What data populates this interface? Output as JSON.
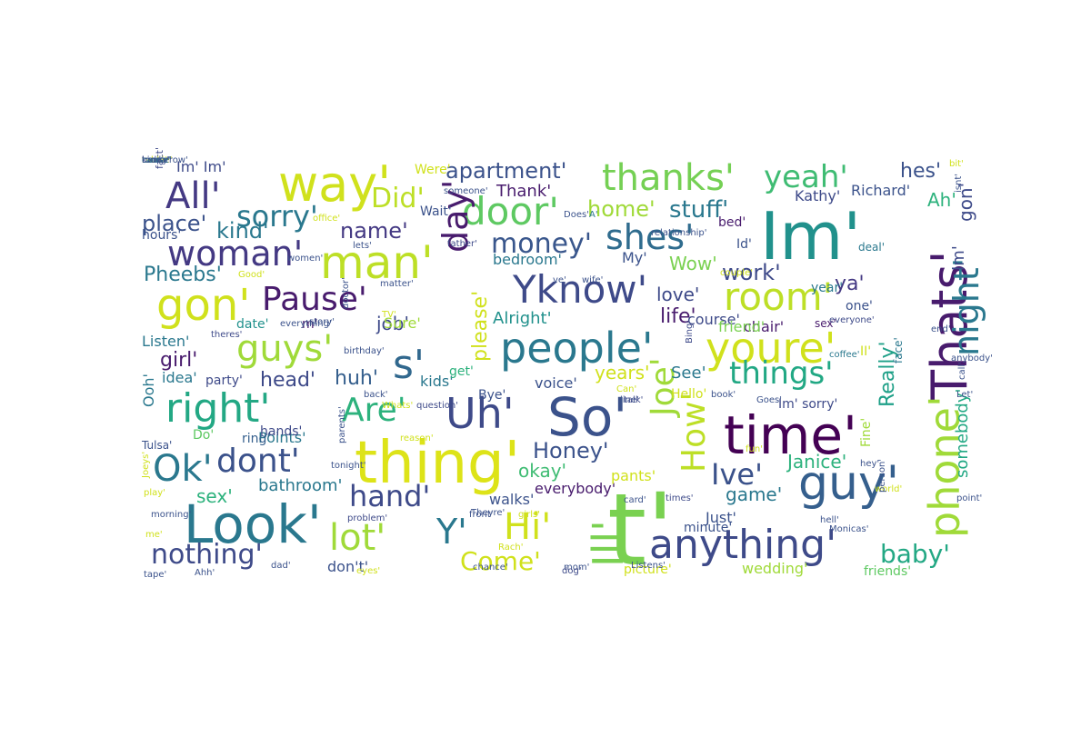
{
  "words": [
    {
      "text": "Im'",
      "color": "#21918c"
    },
    {
      "text": "time'",
      "color": "#440154"
    },
    {
      "text": "t'",
      "color": "#7ad151"
    },
    {
      "text": "thing'",
      "color": "#dde318"
    },
    {
      "text": "Look'",
      "color": "#2a788e"
    },
    {
      "text": "So'",
      "color": "#3b528b"
    },
    {
      "text": "Thats'",
      "color": "#481b6d"
    },
    {
      "text": "guy'",
      "color": "#355f8d"
    },
    {
      "text": "way'",
      "color": "#d0e11c"
    },
    {
      "text": "man'",
      "color": "#bddf26"
    },
    {
      "text": "people'",
      "color": "#2a788e"
    },
    {
      "text": "youre'",
      "color": "#d0e11c"
    },
    {
      "text": "Ill'",
      "color": "#7ad151"
    },
    {
      "text": "Uh'",
      "color": "#3e4a89"
    },
    {
      "text": "phone'",
      "color": "#a0da39"
    },
    {
      "text": "anything'",
      "color": "#3e4a89"
    },
    {
      "text": "s'",
      "color": "#31688e"
    },
    {
      "text": "door'",
      "color": "#5ec962"
    },
    {
      "text": "right'",
      "color": "#23a884"
    },
    {
      "text": "Yknow'",
      "color": "#3e4a89"
    },
    {
      "text": "night'",
      "color": "#2a788e"
    },
    {
      "text": "gon'",
      "color": "#d0e11c"
    },
    {
      "text": "woman'",
      "color": "#443983"
    },
    {
      "text": "thanks'",
      "color": "#75d054"
    },
    {
      "text": "guys'",
      "color": "#a0da39"
    },
    {
      "text": "shes'",
      "color": "#2f6c8e"
    },
    {
      "text": "room'",
      "color": "#bddf26"
    },
    {
      "text": "All'",
      "color": "#443983"
    },
    {
      "text": "Ok'",
      "color": "#2a788e"
    },
    {
      "text": "Hi'",
      "color": "#d0e11c"
    },
    {
      "text": "lot'",
      "color": "#a0da39"
    },
    {
      "text": "Y'",
      "color": "#2a788e"
    },
    {
      "text": "dont'",
      "color": "#3b528b"
    },
    {
      "text": "Are'",
      "color": "#2db27d"
    },
    {
      "text": "Pause'",
      "color": "#481b6d"
    },
    {
      "text": "yeah'",
      "color": "#3fbc73"
    },
    {
      "text": "day'",
      "color": "#481b6d"
    },
    {
      "text": "Joe'",
      "color": "#a0da39"
    },
    {
      "text": "How'",
      "color": "#bddf26"
    },
    {
      "text": "money'",
      "color": "#39568c"
    },
    {
      "text": "hand'",
      "color": "#3e4a89"
    },
    {
      "text": "things'",
      "color": "#22a884"
    },
    {
      "text": "baby'",
      "color": "#23a884"
    },
    {
      "text": "Ive'",
      "color": "#3b528b"
    },
    {
      "text": "nothing'",
      "color": "#3e4a89"
    },
    {
      "text": "Come'",
      "color": "#d0e11c"
    },
    {
      "text": "sorry'",
      "color": "#2a788e"
    },
    {
      "text": "Did'",
      "color": "#bddf26"
    },
    {
      "text": "apartment'",
      "color": "#3b528b"
    },
    {
      "text": "Honey'",
      "color": "#3b528b"
    },
    {
      "text": "please'",
      "color": "#d0e11c"
    },
    {
      "text": "place'",
      "color": "#3b528b"
    },
    {
      "text": "stuff'",
      "color": "#2a788e"
    },
    {
      "text": "home'",
      "color": "#a0da39"
    },
    {
      "text": "work'",
      "color": "#3e4a89"
    },
    {
      "text": "somebody'",
      "color": "#22a884"
    },
    {
      "text": "Really'",
      "color": "#1fa088"
    },
    {
      "text": "Janice'",
      "color": "#2db27d"
    },
    {
      "text": "Pheebs'",
      "color": "#2a788e"
    },
    {
      "text": "name'",
      "color": "#443983"
    },
    {
      "text": "kind'",
      "color": "#2a788e"
    },
    {
      "text": "head'",
      "color": "#3e4a89"
    },
    {
      "text": "huh'",
      "color": "#355f8d"
    },
    {
      "text": "girl'",
      "color": "#481b6d"
    },
    {
      "text": "job'",
      "color": "#3e4a89"
    },
    {
      "text": "life'",
      "color": "#481b6d"
    },
    {
      "text": "love'",
      "color": "#3e4a89"
    },
    {
      "text": "years'",
      "color": "#d0e11c"
    },
    {
      "text": "okay'",
      "color": "#3fbc73"
    },
    {
      "text": "sex'",
      "color": "#2db27d"
    },
    {
      "text": "game'",
      "color": "#2a788e"
    },
    {
      "text": "Wow'",
      "color": "#7ad151"
    },
    {
      "text": "ya'",
      "color": "#443983"
    },
    {
      "text": "hes'",
      "color": "#3b528b"
    },
    {
      "text": "Ah'",
      "color": "#2db27d"
    },
    {
      "text": "Thank'",
      "color": "#481b6d"
    },
    {
      "text": "gon'",
      "color": "#3e4a89"
    },
    {
      "text": "Im'",
      "color": "#3e4a89"
    },
    {
      "text": "Alright'",
      "color": "#21918c"
    },
    {
      "text": "See'",
      "color": "#2a788e"
    },
    {
      "text": "Kathy'",
      "color": "#3e4a89"
    },
    {
      "text": "Richard'",
      "color": "#3b528b"
    },
    {
      "text": "Im' Im'",
      "color": "#3e4a89"
    },
    {
      "text": "My'",
      "color": "#3b528b"
    },
    {
      "text": "bedroom'",
      "color": "#2a788e"
    },
    {
      "text": "walks'",
      "color": "#3b528b"
    },
    {
      "text": "everybody'",
      "color": "#481b6d"
    },
    {
      "text": "bathroom'",
      "color": "#2a788e"
    },
    {
      "text": "Points'",
      "color": "#2a788e"
    },
    {
      "text": "ring'",
      "color": "#355f8d"
    },
    {
      "text": "don't'",
      "color": "#3b528b"
    },
    {
      "text": "picture'",
      "color": "#d0e11c"
    },
    {
      "text": "wedding'",
      "color": "#a0da39"
    },
    {
      "text": "friends'",
      "color": "#5ec962"
    },
    {
      "text": "Just'",
      "color": "#3b528b"
    },
    {
      "text": "minute'",
      "color": "#3b528b"
    },
    {
      "text": "pants'",
      "color": "#d0e11c"
    },
    {
      "text": "voice'",
      "color": "#3b528b"
    },
    {
      "text": "kids'",
      "color": "#2a788e"
    },
    {
      "text": "get'",
      "color": "#2db27d"
    },
    {
      "text": "Hello'",
      "color": "#d0e11c"
    },
    {
      "text": "chair'",
      "color": "#481b6d"
    },
    {
      "text": "course'",
      "color": "#3e4a89"
    },
    {
      "text": "friend'",
      "color": "#7ad151"
    },
    {
      "text": "bed'",
      "color": "#481b6d"
    },
    {
      "text": "Id'",
      "color": "#3b528b"
    },
    {
      "text": "year'",
      "color": "#2a788e"
    },
    {
      "text": "one'",
      "color": "#3b528b"
    },
    {
      "text": "Sure'",
      "color": "#a0da39"
    },
    {
      "text": "Listen'",
      "color": "#2a788e"
    },
    {
      "text": "date'",
      "color": "#21918c"
    },
    {
      "text": "m'",
      "color": "#481b6d"
    },
    {
      "text": "party'",
      "color": "#3e4a89"
    },
    {
      "text": "idea'",
      "color": "#2a788e"
    },
    {
      "text": "Bye'",
      "color": "#3b528b"
    },
    {
      "text": "Ooh'",
      "color": "#2a788e"
    },
    {
      "text": "Do'",
      "color": "#5ec962"
    },
    {
      "text": "hands'",
      "color": "#3e4a89"
    },
    {
      "text": "Wait'",
      "color": "#3b528b"
    },
    {
      "text": "Were'",
      "color": "#d0e11c"
    },
    {
      "text": "hours'",
      "color": "#3b528b"
    },
    {
      "text": "face'",
      "color": "#2a788e"
    },
    {
      "text": "Im' sorry'",
      "color": "#3e4a89"
    },
    {
      "text": "deal'",
      "color": "#2a788e"
    },
    {
      "text": "II'",
      "color": "#d0e11c"
    },
    {
      "text": "Fine'",
      "color": "#a0da39"
    },
    {
      "text": "Tulsa'",
      "color": "#3b528b"
    },
    {
      "text": "sex'",
      "color": "#481b6d"
    },
    {
      "text": "fact'",
      "color": "#3e4a89"
    },
    {
      "text": "someone'",
      "color": "#3b528b"
    },
    {
      "text": "office'",
      "color": "#d0e11c"
    },
    {
      "text": "Does'",
      "color": "#3b528b"
    },
    {
      "text": "A'",
      "color": "#2a788e"
    },
    {
      "text": "relationship'",
      "color": "#3b528b"
    },
    {
      "text": "bit'",
      "color": "#d0e11c"
    },
    {
      "text": "isnt'",
      "color": "#3b528b"
    },
    {
      "text": "father'",
      "color": "#3e4a89"
    },
    {
      "text": "lets'",
      "color": "#3b528b"
    },
    {
      "text": "women'",
      "color": "#3b528b"
    },
    {
      "text": "Good'",
      "color": "#d0e11c"
    },
    {
      "text": "wife'",
      "color": "#3b528b"
    },
    {
      "text": "ve'",
      "color": "#3b528b"
    },
    {
      "text": "couple'",
      "color": "#d0e11c"
    },
    {
      "text": "matter'",
      "color": "#3b528b"
    },
    {
      "text": "TV'",
      "color": "#d0e11c"
    },
    {
      "text": "doctor'",
      "color": "#3b528b"
    },
    {
      "text": "theres'",
      "color": "#3e4a89"
    },
    {
      "text": "story'",
      "color": "#3b528b"
    },
    {
      "text": "everything'",
      "color": "#3b528b"
    },
    {
      "text": "birthday'",
      "color": "#3b528b"
    },
    {
      "text": "back'",
      "color": "#3b528b"
    },
    {
      "text": "question'",
      "color": "#3e4a89"
    },
    {
      "text": "Can'",
      "color": "#d0e11c"
    },
    {
      "text": "line'",
      "color": "#3b528b"
    },
    {
      "text": "talk'",
      "color": "#3e4a89"
    },
    {
      "text": "book'",
      "color": "#3b528b"
    },
    {
      "text": "Goes'",
      "color": "#3b528b"
    },
    {
      "text": "everyone'",
      "color": "#3e4a89"
    },
    {
      "text": "end'",
      "color": "#3b528b"
    },
    {
      "text": "coffee'",
      "color": "#2a788e"
    },
    {
      "text": "anybody'",
      "color": "#3b528b"
    },
    {
      "text": "Let'",
      "color": "#3b528b"
    },
    {
      "text": "call'",
      "color": "#3b528b"
    },
    {
      "text": "Bing'",
      "color": "#3e4a89"
    },
    {
      "text": "fun'",
      "color": "#d0e11c"
    },
    {
      "text": "hey'",
      "color": "#3b528b"
    },
    {
      "text": "world'",
      "color": "#d0e11c"
    },
    {
      "text": "point'",
      "color": "#3b528b"
    },
    {
      "text": "person'",
      "color": "#3b528b"
    },
    {
      "text": "hell'",
      "color": "#3b528b"
    },
    {
      "text": "Monicas'",
      "color": "#3b528b"
    },
    {
      "text": "times'",
      "color": "#3e4a89"
    },
    {
      "text": "card'",
      "color": "#3b528b"
    },
    {
      "text": "Listens'",
      "color": "#3b528b"
    },
    {
      "text": "mom'",
      "color": "#3b528b"
    },
    {
      "text": "dog'",
      "color": "#3e4a89"
    },
    {
      "text": "girls'",
      "color": "#d0e11c"
    },
    {
      "text": "front'",
      "color": "#3b528b"
    },
    {
      "text": "chance'",
      "color": "#3b528b"
    },
    {
      "text": "Rach'",
      "color": "#d0e11c"
    },
    {
      "text": "eyes'",
      "color": "#d0e11c"
    },
    {
      "text": "dad'",
      "color": "#3b528b"
    },
    {
      "text": "problem'",
      "color": "#3e4a89"
    },
    {
      "text": "parents'",
      "color": "#3b528b"
    },
    {
      "text": "reason'",
      "color": "#d0e11c"
    },
    {
      "text": "tonight'",
      "color": "#3b528b"
    },
    {
      "text": "Whats'",
      "color": "#d0e11c"
    },
    {
      "text": "Theyre'",
      "color": "#3b528b"
    },
    {
      "text": "Joeys'",
      "color": "#d0e11c"
    },
    {
      "text": "play'",
      "color": "#d0e11c"
    },
    {
      "text": "morning'",
      "color": "#3b528b"
    },
    {
      "text": "me'",
      "color": "#d0e11c"
    },
    {
      "text": "tape'",
      "color": "#3b528b"
    },
    {
      "text": "Ahh'",
      "color": "#3b528b"
    },
    {
      "text": "movie'",
      "color": "#d0e11c"
    },
    {
      "text": "table'",
      "color": "#d0e11c"
    },
    {
      "text": "tomorrow'",
      "color": "#3b528b"
    },
    {
      "text": "house'",
      "color": "#3b528b"
    },
    {
      "text": "kinda'",
      "color": "#3e4a89"
    },
    {
      "text": "cause'",
      "color": "#2a788e"
    },
    {
      "text": "today'",
      "color": "#3b528b"
    }
  ]
}
